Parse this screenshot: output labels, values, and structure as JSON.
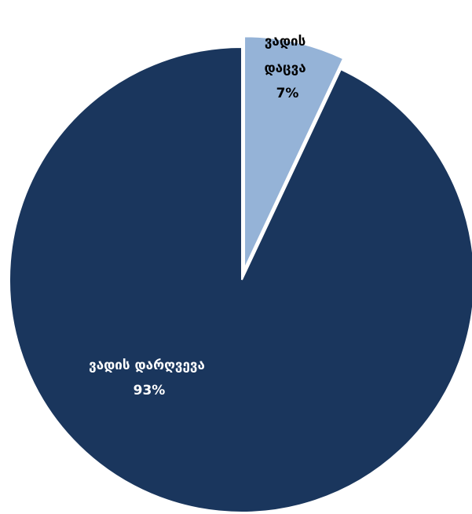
{
  "chart_data": {
    "type": "pie",
    "title": "",
    "slices": [
      {
        "label_lines": [
          "ვადის დარღვევა"
        ],
        "pct_text": "93%",
        "value": 93,
        "color": "#1a365d",
        "exploded": false
      },
      {
        "label_lines": [
          "ვადის",
          "დაცვა"
        ],
        "pct_text": "7%",
        "value": 7,
        "color": "#95b3d7",
        "exploded": true
      }
    ],
    "legend": "none"
  }
}
